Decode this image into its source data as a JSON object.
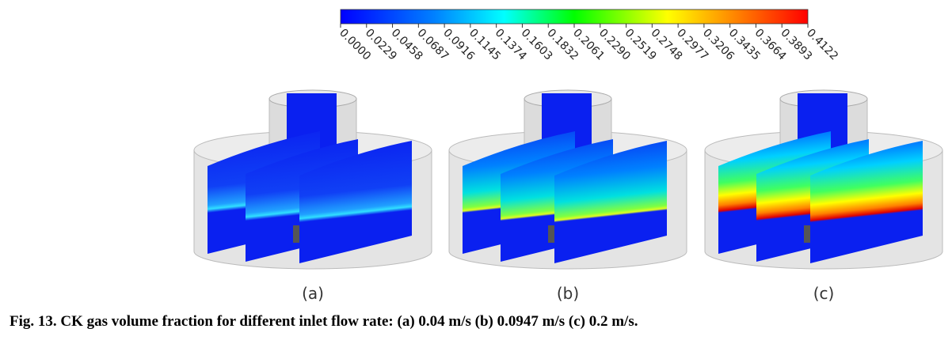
{
  "colorbar": {
    "ticks": [
      "0.0000",
      "0.0229",
      "0.0458",
      "0.0687",
      "0.0916",
      "0.1145",
      "0.1374",
      "0.1603",
      "0.1832",
      "0.2061",
      "0.2290",
      "0.2519",
      "0.2748",
      "0.2977",
      "0.3206",
      "0.3435",
      "0.3664",
      "0.3893",
      "0.4122"
    ]
  },
  "panels": [
    {
      "label": "(a)"
    },
    {
      "label": "(b)"
    },
    {
      "label": "(c)"
    }
  ],
  "caption": "Fig. 13. CK gas volume fraction for different inlet flow rate: (a) 0.04 m/s (b) 0.0947 m/s (c) 0.2 m/s."
}
